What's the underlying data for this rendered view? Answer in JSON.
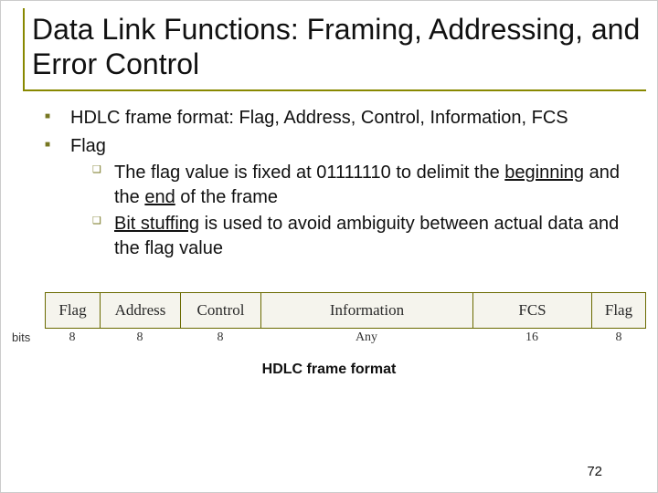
{
  "title": "Data Link Functions: Framing, Addressing, and Error Control",
  "bullets": {
    "b1": "HDLC frame format: Flag, Address, Control, Information, FCS",
    "b2": "Flag",
    "b2a_pre": "The flag value is fixed at 01111110 to delimit the ",
    "b2a_u1": "beginning",
    "b2a_mid": " and the ",
    "b2a_u2": "end",
    "b2a_post": " of the frame",
    "b2b_u": "Bit stuffing",
    "b2b_post": " is used to avoid ambiguity between actual data and the flag value"
  },
  "figure": {
    "bits_label": "bits",
    "cells": {
      "flag": "Flag",
      "address": "Address",
      "control": "Control",
      "information": "Information",
      "fcs": "FCS",
      "flag2": "Flag"
    },
    "bits": {
      "flag": "8",
      "address": "8",
      "control": "8",
      "information": "Any",
      "fcs": "16",
      "flag2": "8"
    },
    "caption": "HDLC frame format",
    "colors": {
      "cell_bg": "#f5f4ed",
      "border": "#6a6a00"
    }
  },
  "page_number": "72"
}
